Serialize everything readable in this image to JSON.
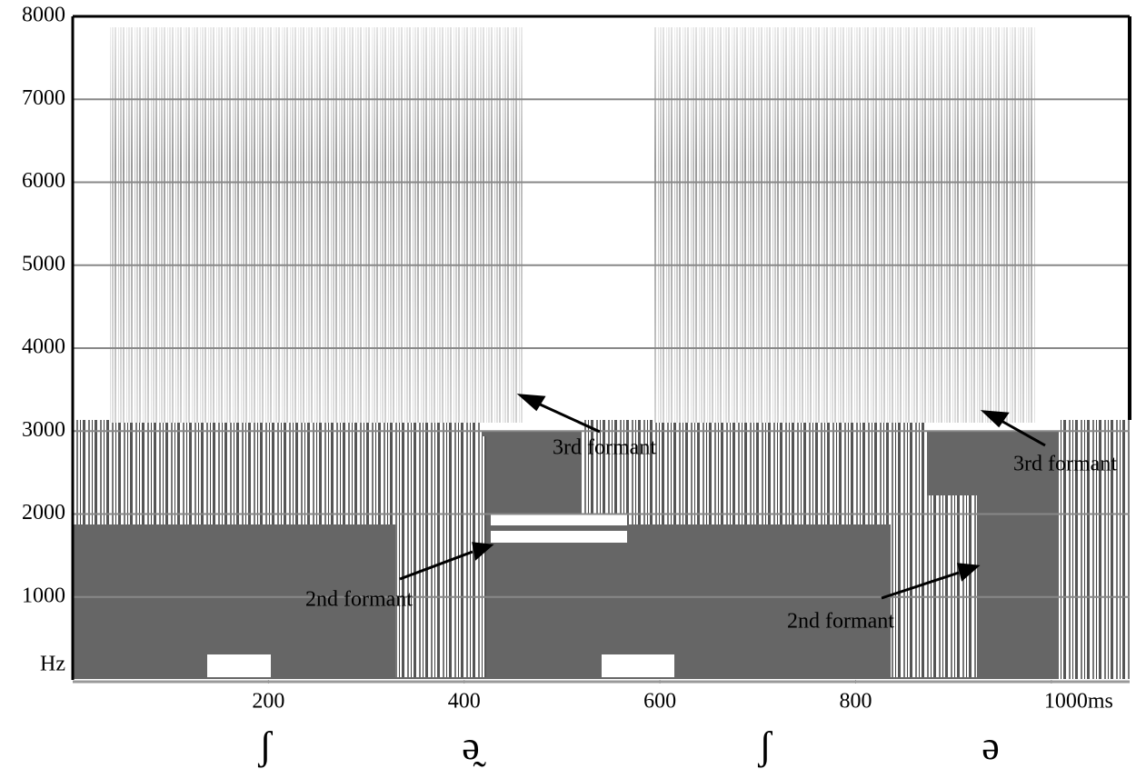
{
  "chart_data": {
    "type": "spectrogram",
    "xlim": [
      0,
      1080
    ],
    "ylim": [
      0,
      8000
    ],
    "xticks": [
      200,
      400,
      600,
      800,
      {
        "value": 1000,
        "label": "1000ms"
      }
    ],
    "yticks": [
      {
        "value": 0,
        "label": "Hz"
      },
      1000,
      2000,
      3000,
      4000,
      5000,
      6000,
      7000,
      8000
    ],
    "grid": true,
    "annotations": [
      "3rd formant",
      "3rd formant",
      "2nd formant",
      "2nd formant"
    ],
    "segments": [
      "ʃ",
      "ə̰",
      "ʃ",
      "ə"
    ]
  }
}
